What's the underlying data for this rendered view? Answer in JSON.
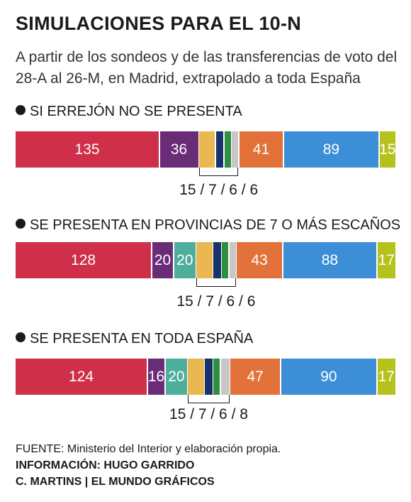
{
  "title": "SIMULACIONES PARA EL 10-N",
  "subtitle": "A partir de los sondeos y de las transferencias de voto del 28-A al 26-M, en Madrid, extrapolado a toda España",
  "colors": {
    "red": "#cf2f49",
    "purple": "#6a2b77",
    "teal": "#4fae9b",
    "yellow": "#eab751",
    "navy": "#17336b",
    "green": "#2d8f3f",
    "lightgray": "#c7c7c7",
    "orange": "#e2713a",
    "blue": "#3c8ed7",
    "lime": "#b5c21c"
  },
  "chart_data": [
    {
      "type": "bar",
      "orientation": "stacked-horizontal",
      "title": "SI ERREJÓN NO SE PRESENTA",
      "values": [
        135,
        36,
        15,
        7,
        6,
        6,
        41,
        89,
        15
      ],
      "labels": [
        "135",
        "36",
        "",
        "",
        "",
        "",
        "41",
        "89",
        "15"
      ],
      "colors": [
        "red",
        "purple",
        "yellow",
        "navy",
        "green",
        "lightgray",
        "orange",
        "blue",
        "lime"
      ],
      "small_parties_label": "15 / 7 / 6 / 6"
    },
    {
      "type": "bar",
      "orientation": "stacked-horizontal",
      "title": "SE PRESENTA EN PROVINCIAS DE 7 O MÁS ESCAÑOS",
      "values": [
        128,
        20,
        20,
        15,
        7,
        6,
        6,
        43,
        88,
        17
      ],
      "labels": [
        "128",
        "20",
        "20",
        "",
        "",
        "",
        "",
        "43",
        "88",
        "17"
      ],
      "colors": [
        "red",
        "purple",
        "teal",
        "yellow",
        "navy",
        "green",
        "lightgray",
        "orange",
        "blue",
        "lime"
      ],
      "small_parties_label": "15 / 7 / 6 / 6"
    },
    {
      "type": "bar",
      "orientation": "stacked-horizontal",
      "title": "SE PRESENTA EN TODA ESPAÑA",
      "values": [
        124,
        16,
        20,
        15,
        7,
        6,
        8,
        47,
        90,
        17
      ],
      "labels": [
        "124",
        "16",
        "20",
        "",
        "",
        "",
        "",
        "47",
        "90",
        "17"
      ],
      "colors": [
        "red",
        "purple",
        "teal",
        "yellow",
        "navy",
        "green",
        "lightgray",
        "orange",
        "blue",
        "lime"
      ],
      "small_parties_label": "15 / 7 / 6 / 8"
    }
  ],
  "footer": {
    "source": "FUENTE: Ministerio del Interior y elaboración propia.",
    "info": "INFORMACIÓN: HUGO GARRIDO",
    "credits": "C. MARTINS | EL MUNDO GRÁFICOS"
  }
}
